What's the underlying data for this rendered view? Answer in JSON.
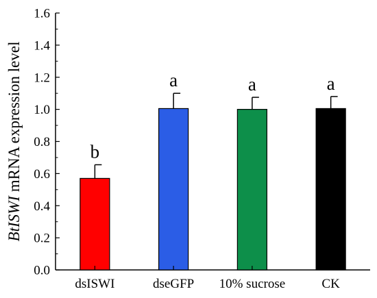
{
  "chart_data": {
    "type": "bar",
    "categories": [
      "dsISWI",
      "dseGFP",
      "10% sucrose",
      "CK"
    ],
    "values": [
      0.57,
      1.005,
      1.0,
      1.005
    ],
    "errors": [
      0.085,
      0.095,
      0.075,
      0.075
    ],
    "significance": [
      "b",
      "a",
      "a",
      "a"
    ],
    "colors": [
      "#ff0000",
      "#2b5de6",
      "#0d8f4a",
      "#000000"
    ],
    "ylabel_italic": "BtISWI",
    "ylabel_rest": " mRNA expression level",
    "xlabel": "",
    "ylim": [
      0.0,
      1.6
    ],
    "yticks": [
      "0.0",
      "0.2",
      "0.4",
      "0.6",
      "0.8",
      "1.0",
      "1.2",
      "1.4",
      "1.6"
    ],
    "grid": false
  }
}
